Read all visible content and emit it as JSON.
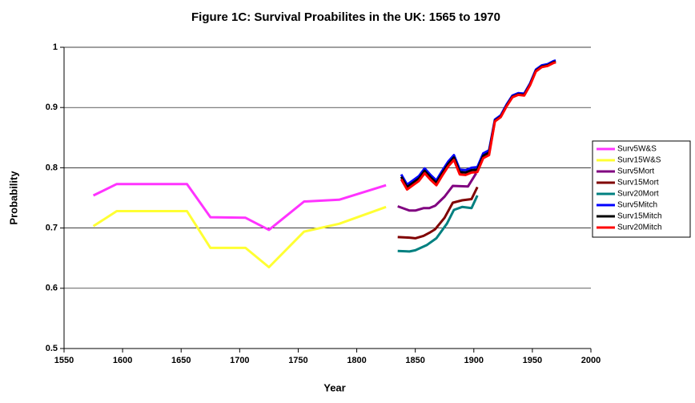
{
  "chart_data": {
    "type": "line",
    "title": "Figure 1C: Survival Proabilites in the UK: 1565 to 1970",
    "x_label": "Year",
    "y_label": "Probability",
    "xlim": [
      1550,
      2000
    ],
    "xticks": [
      1550,
      1600,
      1650,
      1700,
      1750,
      1800,
      1850,
      1900,
      1950,
      2000
    ],
    "ylim": [
      0.5,
      1
    ],
    "yticks": [
      0.5,
      0.6,
      0.7,
      0.8,
      0.9,
      1
    ],
    "grid": true,
    "legend": "right",
    "series": [
      {
        "name": "Surv5W&S",
        "color": "#ff33ff",
        "x": [
          1575,
          1595,
          1655,
          1675,
          1705,
          1725,
          1755,
          1785,
          1825
        ],
        "values": [
          0.754,
          0.773,
          0.773,
          0.718,
          0.717,
          0.697,
          0.744,
          0.747,
          0.771
        ]
      },
      {
        "name": "Surv15W&S",
        "color": "#ffff33",
        "x": [
          1575,
          1595,
          1655,
          1675,
          1705,
          1725,
          1755,
          1785,
          1825
        ],
        "values": [
          0.703,
          0.728,
          0.728,
          0.667,
          0.667,
          0.635,
          0.694,
          0.707,
          0.735
        ]
      },
      {
        "name": "Surv5Mort",
        "color": "#800080",
        "x": [
          1835,
          1845,
          1850,
          1857,
          1862,
          1867,
          1875,
          1882,
          1895,
          1902
        ],
        "values": [
          0.736,
          0.729,
          0.729,
          0.733,
          0.733,
          0.737,
          0.752,
          0.77,
          0.769,
          0.791
        ]
      },
      {
        "name": "Surv15Mort",
        "color": "#800000",
        "x": [
          1835,
          1845,
          1850,
          1857,
          1862,
          1867,
          1875,
          1882,
          1890,
          1898,
          1903
        ],
        "values": [
          0.685,
          0.684,
          0.683,
          0.687,
          0.692,
          0.698,
          0.717,
          0.742,
          0.746,
          0.748,
          0.768
        ]
      },
      {
        "name": "Surv20Mort",
        "color": "#008080",
        "x": [
          1835,
          1845,
          1850,
          1860,
          1868,
          1877,
          1883,
          1890,
          1898,
          1903
        ],
        "values": [
          0.662,
          0.661,
          0.663,
          0.672,
          0.683,
          0.707,
          0.73,
          0.735,
          0.733,
          0.754
        ]
      },
      {
        "name": "Surv5Mitch",
        "color": "#0000ff",
        "x": [
          1838,
          1843,
          1848,
          1853,
          1858,
          1863,
          1868,
          1873,
          1878,
          1883,
          1888,
          1893,
          1898,
          1903,
          1908,
          1913,
          1918,
          1923,
          1928,
          1933,
          1938,
          1943,
          1948,
          1953,
          1958,
          1963,
          1968,
          1970
        ],
        "values": [
          0.789,
          0.772,
          0.779,
          0.786,
          0.799,
          0.788,
          0.779,
          0.795,
          0.81,
          0.821,
          0.797,
          0.796,
          0.8,
          0.801,
          0.824,
          0.829,
          0.88,
          0.887,
          0.905,
          0.92,
          0.924,
          0.923,
          0.94,
          0.963,
          0.97,
          0.972,
          0.977,
          0.978
        ]
      },
      {
        "name": "Surv15Mitch",
        "color": "#000000",
        "x": [
          1838,
          1843,
          1848,
          1853,
          1858,
          1863,
          1868,
          1873,
          1878,
          1883,
          1888,
          1893,
          1898,
          1903,
          1908,
          1913,
          1918,
          1923,
          1928,
          1933,
          1938,
          1943,
          1948,
          1953,
          1958,
          1963,
          1968,
          1970
        ],
        "values": [
          0.785,
          0.768,
          0.775,
          0.782,
          0.795,
          0.784,
          0.775,
          0.791,
          0.806,
          0.817,
          0.793,
          0.792,
          0.796,
          0.797,
          0.82,
          0.825,
          0.878,
          0.885,
          0.903,
          0.918,
          0.922,
          0.921,
          0.938,
          0.961,
          0.968,
          0.97,
          0.975,
          0.976
        ]
      },
      {
        "name": "Surv20Mitch",
        "color": "#ff0000",
        "x": [
          1838,
          1843,
          1848,
          1853,
          1858,
          1863,
          1868,
          1873,
          1878,
          1883,
          1888,
          1893,
          1898,
          1903,
          1908,
          1913,
          1918,
          1923,
          1928,
          1933,
          1938,
          1943,
          1948,
          1953,
          1958,
          1963,
          1968,
          1970
        ],
        "values": [
          0.781,
          0.764,
          0.771,
          0.778,
          0.791,
          0.78,
          0.771,
          0.787,
          0.802,
          0.813,
          0.789,
          0.788,
          0.792,
          0.793,
          0.816,
          0.821,
          0.877,
          0.884,
          0.902,
          0.917,
          0.921,
          0.92,
          0.937,
          0.96,
          0.967,
          0.969,
          0.974,
          0.975
        ]
      }
    ]
  }
}
